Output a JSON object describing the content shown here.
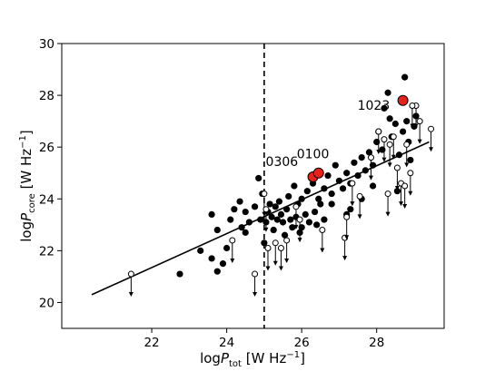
{
  "chart_data": {
    "type": "scatter",
    "xlabel": {
      "main": "log",
      "italic": "P",
      "sub": "tot",
      "unit": " [W Hz",
      "sup": "−1",
      "close": "]"
    },
    "ylabel": {
      "main": "log",
      "italic": "P",
      "sub": "core",
      "unit": " [W Hz",
      "sup": "−1",
      "close": "]"
    },
    "xlim": [
      19.6,
      29.8
    ],
    "ylim": [
      19.0,
      30.0
    ],
    "xticks": [
      22,
      24,
      26,
      28
    ],
    "yticks": [
      20,
      22,
      24,
      26,
      28,
      30
    ],
    "vline_x": 25.0,
    "fit_line": {
      "x": [
        20.4,
        29.4
      ],
      "y": [
        20.3,
        26.2
      ]
    },
    "detections": [
      [
        22.75,
        21.1
      ],
      [
        23.3,
        22.0
      ],
      [
        23.6,
        21.7
      ],
      [
        23.75,
        21.2
      ],
      [
        23.9,
        21.5
      ],
      [
        23.6,
        23.4
      ],
      [
        23.75,
        22.8
      ],
      [
        24.0,
        22.1
      ],
      [
        24.1,
        23.2
      ],
      [
        24.2,
        23.6
      ],
      [
        24.35,
        23.9
      ],
      [
        24.5,
        23.5
      ],
      [
        24.6,
        23.1
      ],
      [
        24.75,
        23.7
      ],
      [
        24.85,
        24.8
      ],
      [
        24.9,
        23.2
      ],
      [
        24.95,
        24.2
      ],
      [
        25.05,
        23.1
      ],
      [
        25.1,
        23.5
      ],
      [
        25.15,
        23.8
      ],
      [
        25.2,
        23.3
      ],
      [
        25.25,
        22.8
      ],
      [
        25.3,
        23.7
      ],
      [
        25.35,
        23.2
      ],
      [
        25.4,
        23.9
      ],
      [
        25.45,
        23.4
      ],
      [
        25.5,
        23.1
      ],
      [
        25.55,
        22.6
      ],
      [
        25.6,
        23.6
      ],
      [
        25.65,
        24.1
      ],
      [
        25.7,
        23.2
      ],
      [
        25.75,
        22.9
      ],
      [
        25.8,
        24.5
      ],
      [
        25.85,
        23.3
      ],
      [
        25.9,
        23.8
      ],
      [
        25.95,
        22.7
      ],
      [
        26.0,
        24.0
      ],
      [
        26.1,
        23.4
      ],
      [
        26.15,
        24.3
      ],
      [
        26.2,
        23.1
      ],
      [
        26.3,
        24.6
      ],
      [
        26.35,
        23.5
      ],
      [
        26.45,
        24.0
      ],
      [
        26.5,
        23.8
      ],
      [
        26.6,
        24.4
      ],
      [
        26.7,
        24.9
      ],
      [
        26.8,
        24.2
      ],
      [
        26.9,
        25.3
      ],
      [
        27.0,
        24.7
      ],
      [
        27.1,
        24.4
      ],
      [
        27.2,
        25.0
      ],
      [
        27.3,
        24.6
      ],
      [
        27.4,
        25.4
      ],
      [
        27.5,
        24.9
      ],
      [
        27.6,
        25.6
      ],
      [
        27.7,
        25.1
      ],
      [
        27.8,
        25.8
      ],
      [
        27.9,
        25.3
      ],
      [
        28.0,
        26.2
      ],
      [
        28.05,
        26.6
      ],
      [
        28.15,
        25.9
      ],
      [
        28.2,
        27.5
      ],
      [
        28.3,
        28.1
      ],
      [
        28.35,
        27.1
      ],
      [
        28.4,
        26.4
      ],
      [
        28.5,
        26.9
      ],
      [
        28.6,
        25.7
      ],
      [
        28.7,
        26.6
      ],
      [
        28.75,
        28.7
      ],
      [
        28.8,
        27.0
      ],
      [
        28.85,
        26.2
      ],
      [
        28.9,
        25.5
      ],
      [
        29.0,
        26.8
      ],
      [
        29.05,
        27.2
      ],
      [
        28.55,
        24.3
      ],
      [
        27.6,
        24.0
      ],
      [
        27.9,
        24.5
      ],
      [
        26.8,
        23.8
      ],
      [
        26.6,
        23.2
      ],
      [
        27.3,
        23.6
      ],
      [
        24.5,
        22.7
      ],
      [
        25.0,
        22.3
      ],
      [
        24.4,
        22.9
      ],
      [
        26.0,
        22.9
      ],
      [
        26.4,
        23.0
      ],
      [
        27.2,
        23.4
      ]
    ],
    "upper_limits": [
      [
        21.45,
        21.1
      ],
      [
        24.15,
        22.4
      ],
      [
        24.75,
        21.1
      ],
      [
        25.0,
        24.2
      ],
      [
        25.05,
        23.6
      ],
      [
        25.1,
        22.1
      ],
      [
        25.3,
        22.3
      ],
      [
        25.45,
        22.1
      ],
      [
        25.6,
        22.4
      ],
      [
        25.85,
        23.7
      ],
      [
        25.95,
        23.2
      ],
      [
        26.55,
        22.8
      ],
      [
        27.15,
        22.5
      ],
      [
        27.2,
        23.3
      ],
      [
        27.35,
        24.6
      ],
      [
        27.55,
        24.1
      ],
      [
        28.05,
        26.6
      ],
      [
        28.2,
        26.3
      ],
      [
        28.35,
        26.1
      ],
      [
        28.45,
        26.4
      ],
      [
        28.55,
        25.2
      ],
      [
        28.65,
        24.6
      ],
      [
        28.8,
        26.1
      ],
      [
        28.9,
        25.0
      ],
      [
        29.05,
        27.6
      ],
      [
        29.15,
        27.0
      ],
      [
        29.45,
        26.7
      ],
      [
        28.3,
        24.2
      ],
      [
        28.75,
        24.5
      ],
      [
        27.85,
        25.6
      ],
      [
        28.95,
        27.6
      ]
    ],
    "highlighted": [
      {
        "label": "0306",
        "x": 26.3,
        "y": 24.85,
        "color": "#e8211a"
      },
      {
        "label": "0100",
        "x": 26.45,
        "y": 25.0,
        "color": "#e8211a"
      },
      {
        "label": "1023",
        "x": 28.7,
        "y": 27.8,
        "color": "#e8211a"
      }
    ]
  }
}
